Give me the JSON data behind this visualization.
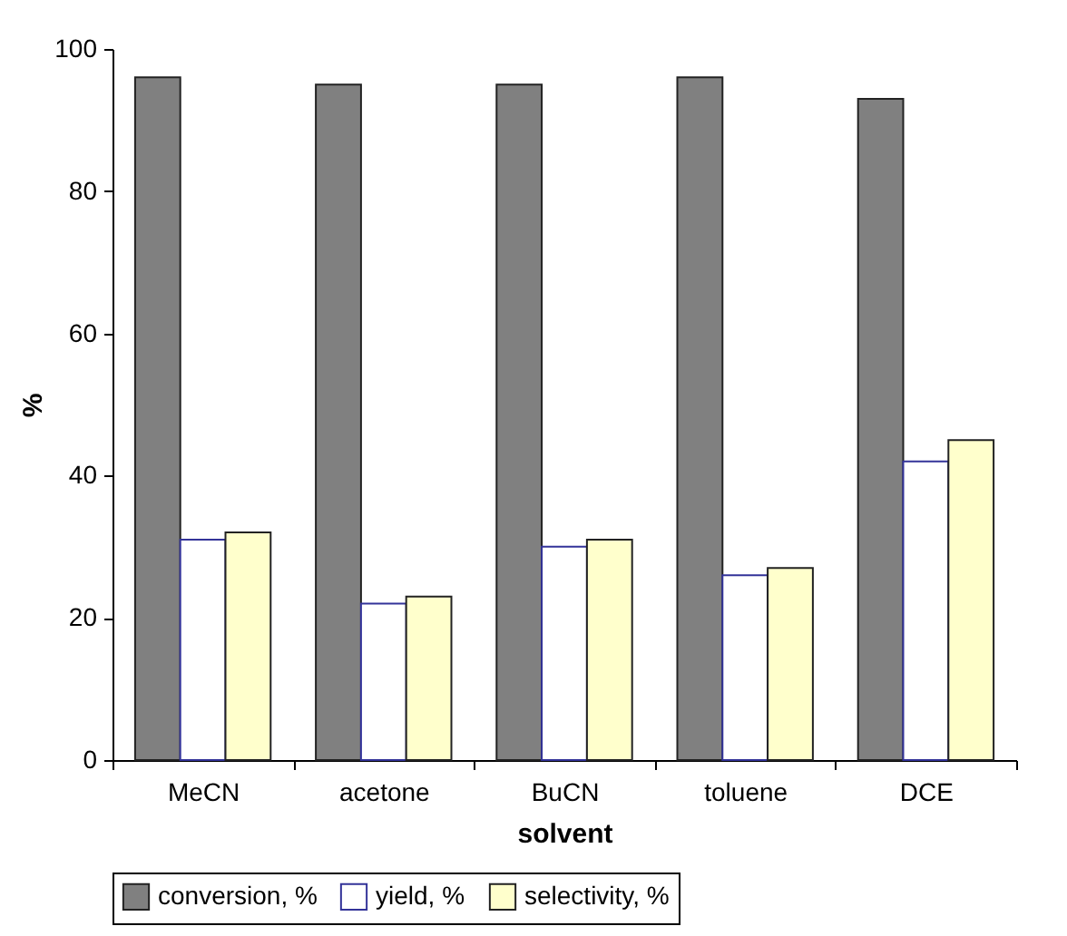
{
  "chart_data": {
    "type": "bar",
    "xlabel": "solvent",
    "ylabel": "%",
    "categories": [
      "MeCN",
      "acetone",
      "BuCN",
      "toluene",
      "DCE"
    ],
    "series": [
      {
        "name": "conversion, %",
        "color": "#808080",
        "values": [
          96,
          95,
          95,
          96,
          93
        ]
      },
      {
        "name": "yield, %",
        "color": "#ffffff",
        "values": [
          31,
          22,
          30,
          26,
          42
        ]
      },
      {
        "name": "selectivity, %",
        "color": "#ffffcc",
        "values": [
          32,
          23,
          31,
          27,
          45
        ]
      }
    ],
    "ylim": [
      0,
      100
    ],
    "yticks": [
      0,
      20,
      40,
      60,
      80,
      100
    ],
    "grid": false,
    "legend": "bottom"
  }
}
